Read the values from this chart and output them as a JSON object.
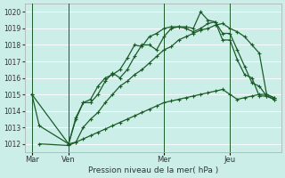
{
  "bg_color": "#cceee8",
  "grid_color": "#b8ddd8",
  "line_color": "#1a5c28",
  "xlabel": "Pression niveau de la mer( hPa )",
  "ylim": [
    1011.5,
    1020.5
  ],
  "yticks": [
    1012,
    1013,
    1014,
    1015,
    1016,
    1017,
    1018,
    1019,
    1020
  ],
  "xtick_labels": [
    "Mar",
    "Ven",
    "Mer",
    "Jeu"
  ],
  "xtick_positions": [
    0,
    5,
    18,
    27
  ],
  "vlines_x": [
    0,
    5,
    18,
    27
  ],
  "total_points": 35,
  "line1_x": [
    0,
    1,
    5,
    6,
    7,
    8,
    9,
    10,
    11,
    12,
    13,
    14,
    15,
    16,
    17,
    18,
    19,
    20,
    21,
    22,
    23,
    24,
    25,
    26,
    27,
    28,
    29,
    30,
    31,
    32,
    33
  ],
  "line1_y": [
    1015.0,
    1013.1,
    1012.0,
    1013.5,
    1014.5,
    1014.5,
    1015.0,
    1015.8,
    1016.3,
    1016.0,
    1016.5,
    1017.3,
    1018.0,
    1018.0,
    1017.7,
    1018.5,
    1019.0,
    1019.1,
    1019.1,
    1019.0,
    1020.0,
    1019.5,
    1019.4,
    1018.3,
    1018.3,
    1017.1,
    1016.2,
    1016.0,
    1014.9,
    1014.9,
    1014.7
  ],
  "line2_x": [
    0,
    5,
    6,
    7,
    8,
    9,
    10,
    11,
    12,
    13,
    14,
    15,
    16,
    17,
    18,
    19,
    20,
    21,
    22,
    23,
    24,
    25,
    26,
    27,
    28,
    29,
    30,
    31,
    32,
    33
  ],
  "line2_y": [
    1015.0,
    1012.0,
    1013.6,
    1014.5,
    1014.7,
    1015.5,
    1016.0,
    1016.2,
    1016.5,
    1017.2,
    1018.0,
    1017.9,
    1018.5,
    1018.7,
    1019.0,
    1019.1,
    1019.1,
    1019.0,
    1018.8,
    1019.0,
    1019.3,
    1019.4,
    1018.7,
    1018.7,
    1017.7,
    1016.7,
    1015.7,
    1015.5,
    1014.9,
    1014.7
  ],
  "line3_x": [
    5,
    6,
    7,
    8,
    9,
    10,
    11,
    12,
    13,
    14,
    15,
    16,
    17,
    18,
    19,
    20,
    21,
    22,
    23,
    24,
    25,
    26,
    27,
    28,
    29,
    30,
    31,
    32,
    33
  ],
  "line3_y": [
    1012.0,
    1012.1,
    1013.0,
    1013.5,
    1013.9,
    1014.5,
    1015.0,
    1015.5,
    1015.8,
    1016.2,
    1016.5,
    1016.9,
    1017.3,
    1017.7,
    1017.9,
    1018.3,
    1018.5,
    1018.7,
    1018.9,
    1019.0,
    1019.2,
    1019.3,
    1019.0,
    1018.8,
    1018.5,
    1018.0,
    1017.5,
    1015.0,
    1014.8
  ],
  "line4_x": [
    1,
    5,
    6,
    7,
    8,
    9,
    10,
    11,
    12,
    13,
    14,
    15,
    16,
    17,
    18,
    19,
    20,
    21,
    22,
    23,
    24,
    25,
    26,
    27,
    28,
    29,
    30,
    31,
    32,
    33
  ],
  "line4_y": [
    1012.0,
    1011.9,
    1012.1,
    1012.3,
    1012.5,
    1012.7,
    1012.9,
    1013.1,
    1013.3,
    1013.5,
    1013.7,
    1013.9,
    1014.1,
    1014.3,
    1014.5,
    1014.6,
    1014.7,
    1014.8,
    1014.9,
    1015.0,
    1015.1,
    1015.2,
    1015.3,
    1015.0,
    1014.7,
    1014.8,
    1014.9,
    1015.0,
    1015.0,
    1014.8
  ]
}
